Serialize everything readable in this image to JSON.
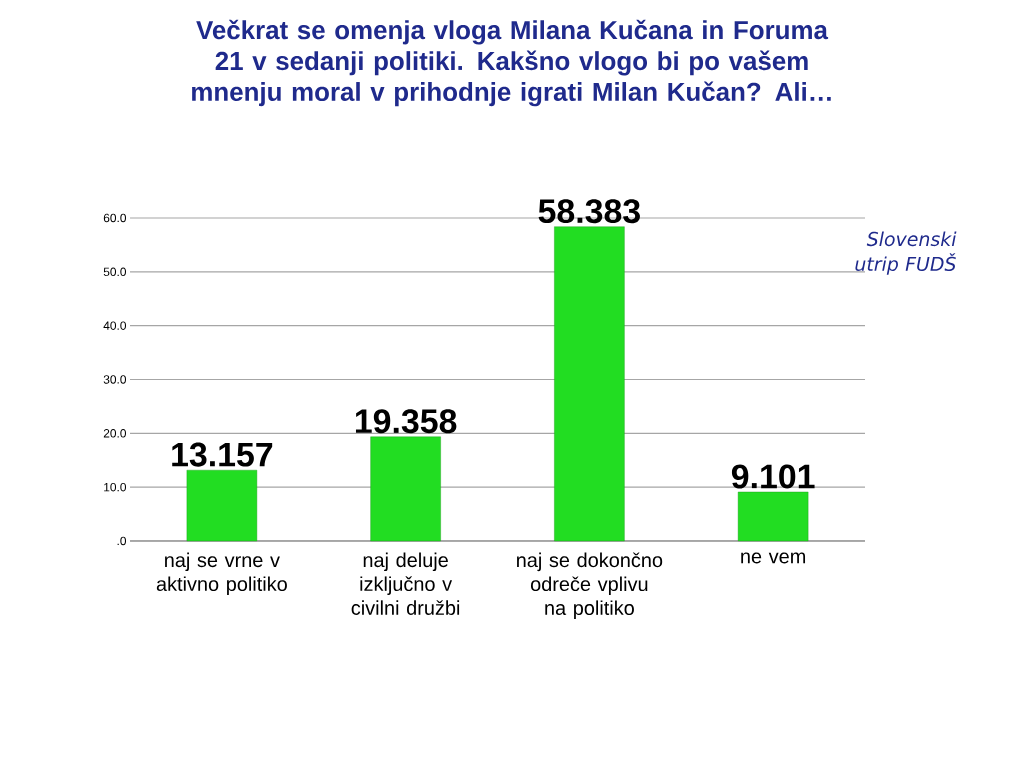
{
  "chart_data": {
    "type": "bar",
    "title": "Večkrat se omenja vloga Milana Kučana in Foruma 21 v sedanji politiki. Kakšno vlogo bi po vašem mnenju moral v prihodnje igrati Milan Kučan? Ali…",
    "categories": [
      "naj se vrne v aktivno politiko",
      "naj deluje izključno v civilni družbi",
      "naj se dokončno odreče vplivu na politiko",
      "ne vem"
    ],
    "values": [
      13.157,
      19.358,
      58.383,
      9.101
    ],
    "value_labels": [
      "13.157",
      "19.358",
      "58.383",
      "9.101"
    ],
    "color": "#22dd22",
    "ylim": [
      0,
      60
    ],
    "yticks": [
      {
        "value": 0,
        "label": ".0"
      },
      {
        "value": 10,
        "label": "10.0"
      },
      {
        "value": 20,
        "label": "20.0"
      },
      {
        "value": 30,
        "label": "30.0"
      },
      {
        "value": 40,
        "label": "40.0"
      },
      {
        "value": 50,
        "label": "50.0"
      },
      {
        "value": 60,
        "label": "60.0"
      }
    ],
    "grid": "y",
    "annotations": [
      "Slovenski utrip FUDŠ"
    ]
  }
}
